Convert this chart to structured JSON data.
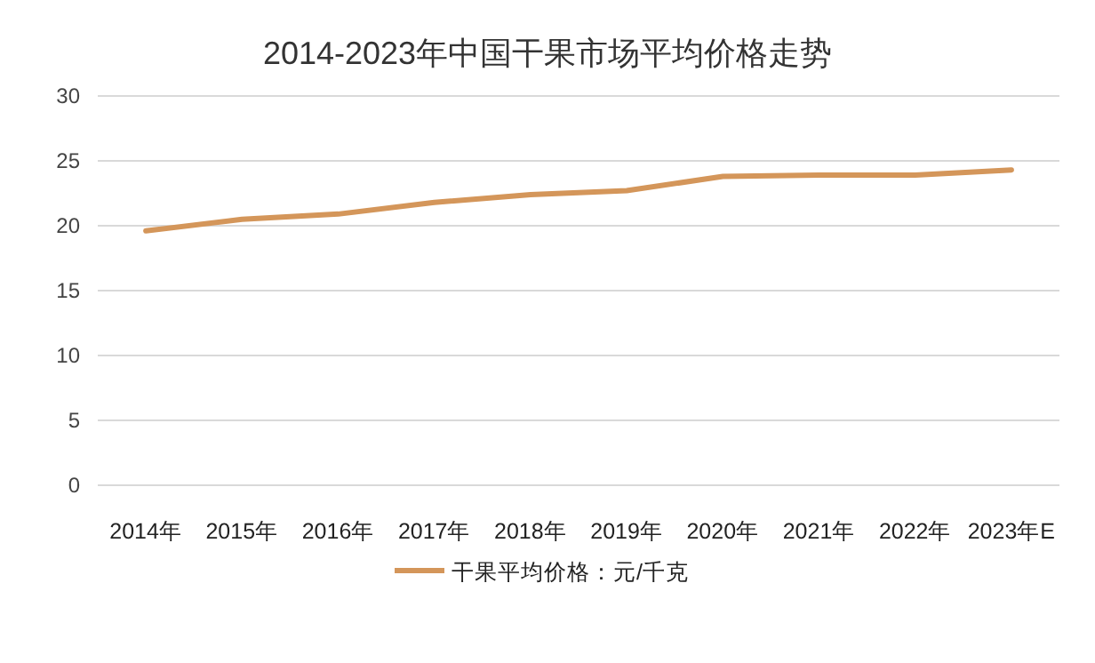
{
  "chart_data": {
    "type": "line",
    "title": "2014-2023年中国干果市场平均价格走势",
    "categories": [
      "2014年",
      "2015年",
      "2016年",
      "2017年",
      "2018年",
      "2019年",
      "2020年",
      "2021年",
      "2022年",
      "2023年E"
    ],
    "series": [
      {
        "name": "干果平均价格：元/千克",
        "color": "#d4965a",
        "values": [
          19.6,
          20.5,
          20.9,
          21.8,
          22.4,
          22.7,
          23.8,
          23.9,
          23.9,
          24.3
        ]
      }
    ],
    "ylim": [
      0,
      30
    ],
    "yticks": [
      0,
      5,
      10,
      15,
      20,
      25,
      30
    ],
    "grid": "y",
    "legend": "bottom",
    "marker": "none",
    "line_style": "solid"
  }
}
